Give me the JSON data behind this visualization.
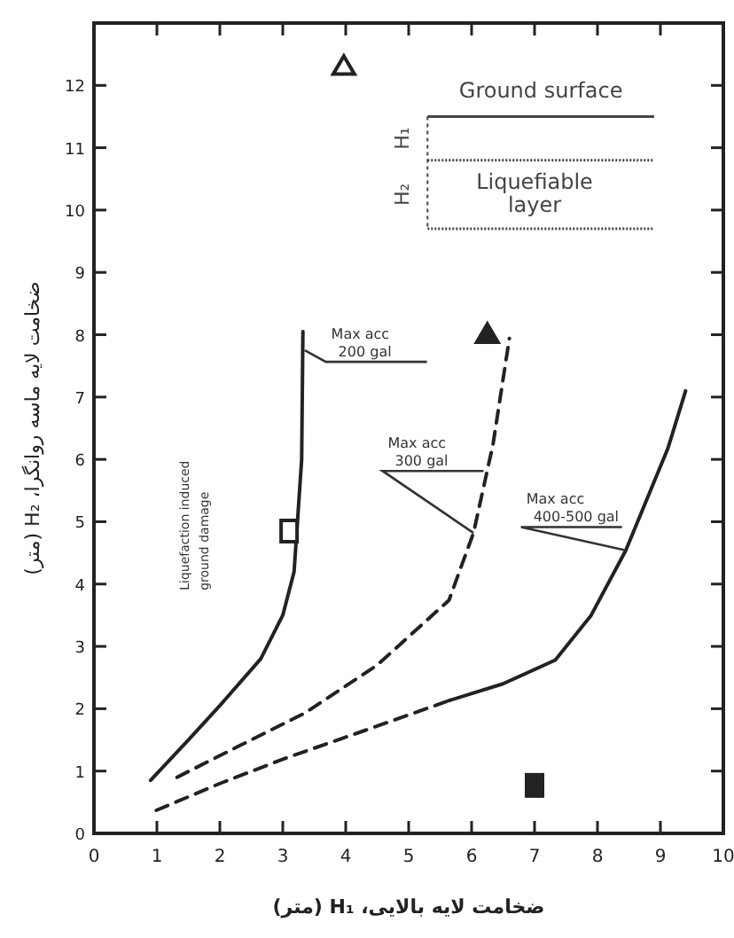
{
  "chart_data": {
    "type": "line",
    "xlabel": "ضخامت لایه بالایی، H₁ (متر)",
    "ylabel": "ضخامت لایه ماسه روانگرا، H₂ (متر)",
    "xlim": [
      0,
      10
    ],
    "ylim": [
      0,
      13
    ],
    "xticks": [
      0,
      1,
      2,
      3,
      4,
      5,
      6,
      7,
      8,
      9,
      10
    ],
    "yticks": [
      0,
      1,
      2,
      3,
      4,
      5,
      6,
      7,
      8,
      9,
      10,
      11,
      12
    ],
    "grid": false,
    "series": [
      {
        "line_style": "solid",
        "marker": "none",
        "color": "#222222",
        "x": [
          0.9,
          1.5,
          2.0,
          2.65,
          3.0,
          3.18,
          3.3,
          3.32
        ],
        "values": [
          0.85,
          1.5,
          2.05,
          2.8,
          3.5,
          4.2,
          6.0,
          8.05
        ]
      },
      {
        "line_style": "dashed",
        "marker": "none",
        "color": "#222222",
        "x": [
          1.32,
          2.3,
          3.35,
          4.5,
          5.64,
          6.03,
          6.34,
          6.6
        ],
        "values": [
          0.9,
          1.4,
          1.93,
          2.7,
          3.74,
          4.82,
          6.24,
          7.94
        ]
      },
      {
        "line_style": "dashed",
        "marker": "none",
        "color": "#222222",
        "x": [
          0.99,
          2.0,
          3.0,
          4.3,
          5.64
        ],
        "values": [
          0.37,
          0.8,
          1.19,
          1.65,
          2.13
        ]
      },
      {
        "line_style": "solid",
        "marker": "none",
        "color": "#222222",
        "x": [
          5.64,
          6.5,
          7.33,
          7.9,
          8.45,
          9.12,
          9.4
        ],
        "values": [
          2.13,
          2.4,
          2.78,
          3.5,
          4.54,
          6.18,
          7.1
        ]
      },
      {
        "type": "scatter",
        "marker": "triangle",
        "color": "#ffffff",
        "x": [
          3.97
        ],
        "values": [
          12.3
        ]
      },
      {
        "type": "scatter",
        "marker": "triangle",
        "color": "#222222",
        "x": [
          6.25
        ],
        "values": [
          8.0
        ]
      },
      {
        "type": "scatter",
        "marker": "square",
        "color": "#ffffff",
        "x": [
          3.1
        ],
        "values": [
          4.85
        ]
      },
      {
        "type": "scatter",
        "marker": "square",
        "color": "#222222",
        "x": [
          7.0
        ],
        "values": [
          0.77
        ]
      }
    ],
    "annotations": [
      {
        "text": "Max acc 200 gal",
        "x": 3.35,
        "y": 7.75
      },
      {
        "text": "Max acc 300 gal",
        "x": 6.03,
        "y": 4.82
      },
      {
        "text": "Max acc 400-500 gal",
        "x": 8.45,
        "y": 4.54
      },
      "Liquefaction induced ground damage",
      "Ground surface",
      "H₁",
      "H₂",
      "Liquefiable layer"
    ]
  }
}
